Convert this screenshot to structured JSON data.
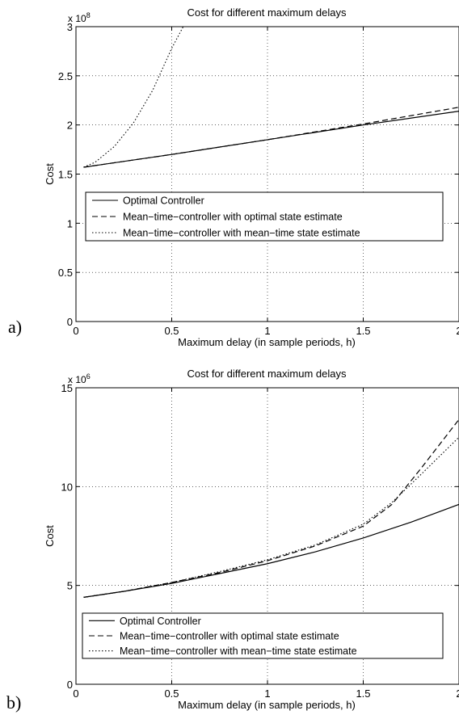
{
  "chart_data": [
    {
      "panel_label": "a)",
      "type": "line",
      "title": "Cost for different maximum delays",
      "xlabel": "Maximum delay (in sample periods, h)",
      "ylabel": "Cost",
      "y_exponent_label": "x 10",
      "y_exponent_power": "8",
      "xlim": [
        0,
        2
      ],
      "ylim": [
        0,
        3
      ],
      "xticks": [
        0,
        0.5,
        1,
        1.5,
        2
      ],
      "xtick_labels": [
        "0",
        "0.5",
        "1",
        "1.5",
        "2"
      ],
      "yticks": [
        0,
        0.5,
        1,
        1.5,
        2,
        2.5,
        3
      ],
      "ytick_labels": [
        "0",
        "0.5",
        "1",
        "1.5",
        "2",
        "2.5",
        "3"
      ],
      "grid": true,
      "legend_placement": "left",
      "series": [
        {
          "name": "Optimal Controller",
          "style": "solid",
          "x": [
            0.04,
            0.5,
            1.0,
            1.5,
            2.0
          ],
          "y": [
            1.57,
            1.7,
            1.85,
            2.0,
            2.14
          ]
        },
        {
          "name": "Mean−time−controller with optimal state estimate",
          "style": "dashed",
          "x": [
            0.04,
            0.5,
            1.0,
            1.5,
            2.0
          ],
          "y": [
            1.57,
            1.7,
            1.85,
            2.01,
            2.18
          ]
        },
        {
          "name": "Mean−time−controller with mean−time state estimate",
          "style": "dotted",
          "x": [
            0.04,
            0.1,
            0.2,
            0.3,
            0.4,
            0.5,
            0.56
          ],
          "y": [
            1.57,
            1.62,
            1.78,
            2.02,
            2.35,
            2.78,
            3.0
          ]
        }
      ]
    },
    {
      "panel_label": "b)",
      "type": "line",
      "title": "Cost for different maximum delays",
      "xlabel": "Maximum delay (in sample periods, h)",
      "ylabel": "Cost",
      "y_exponent_label": "x 10",
      "y_exponent_power": "6",
      "xlim": [
        0,
        2
      ],
      "ylim": [
        0,
        15
      ],
      "xticks": [
        0,
        0.5,
        1,
        1.5,
        2
      ],
      "xtick_labels": [
        "0",
        "0.5",
        "1",
        "1.5",
        "2"
      ],
      "yticks": [
        0,
        5,
        10,
        15
      ],
      "ytick_labels": [
        "0",
        "5",
        "10",
        "15"
      ],
      "grid": true,
      "legend_placement": "bottom-left",
      "series": [
        {
          "name": "Optimal Controller",
          "style": "solid",
          "x": [
            0.04,
            0.25,
            0.5,
            0.75,
            1.0,
            1.25,
            1.5,
            1.75,
            2.0
          ],
          "y": [
            4.4,
            4.7,
            5.1,
            5.6,
            6.1,
            6.7,
            7.4,
            8.2,
            9.1
          ]
        },
        {
          "name": "Mean−time−controller with optimal state estimate",
          "style": "dashed",
          "x": [
            0.04,
            0.25,
            0.5,
            0.75,
            1.0,
            1.25,
            1.5,
            1.65,
            1.8,
            2.0
          ],
          "y": [
            4.4,
            4.7,
            5.15,
            5.65,
            6.25,
            7.0,
            8.0,
            9.1,
            10.9,
            13.4
          ]
        },
        {
          "name": "Mean−time−controller with mean−time state estimate",
          "style": "dotted",
          "x": [
            0.04,
            0.25,
            0.5,
            0.75,
            1.0,
            1.25,
            1.5,
            1.65,
            1.8,
            2.0
          ],
          "y": [
            4.4,
            4.7,
            5.15,
            5.7,
            6.3,
            7.05,
            8.1,
            9.2,
            10.6,
            12.5
          ]
        }
      ]
    }
  ]
}
